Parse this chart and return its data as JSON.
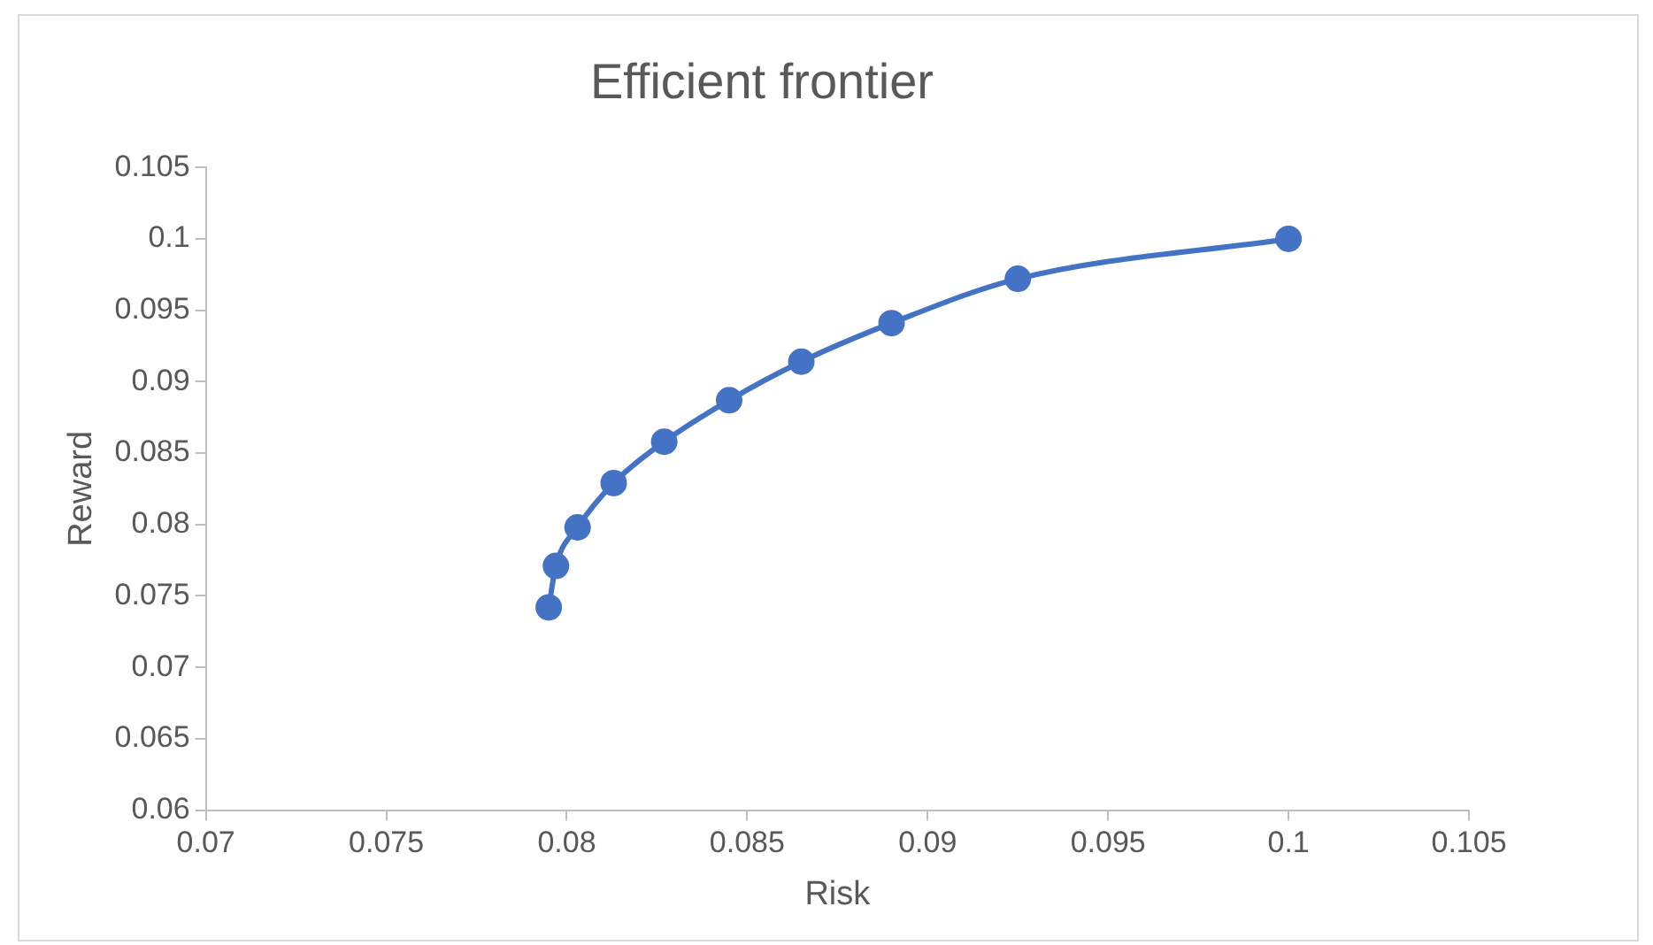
{
  "chart_data": {
    "type": "scatter",
    "title": "Efficient frontier",
    "xlabel": "Risk",
    "ylabel": "Reward",
    "series": [
      {
        "type": "line",
        "color": "#4472c4",
        "x": [
          0.0795,
          0.0797,
          0.0803,
          0.0813,
          0.0827,
          0.0845,
          0.0865,
          0.089,
          0.0925,
          0.1
        ],
        "values": [
          0.0742,
          0.0771,
          0.0798,
          0.0829,
          0.0858,
          0.0887,
          0.0914,
          0.0941,
          0.0972,
          0.1
        ]
      }
    ],
    "marker": "circle",
    "line_style": "solid",
    "grid": false,
    "legend": false,
    "xlim": [
      0.07,
      0.105
    ],
    "xticks": [
      0.07,
      0.075,
      0.08,
      0.085,
      0.09,
      0.095,
      0.1,
      0.105
    ],
    "ylim": [
      0.06,
      0.105
    ],
    "yticks": [
      0.06,
      0.065,
      0.07,
      0.075,
      0.08,
      0.085,
      0.09,
      0.095,
      0.1,
      0.105
    ]
  }
}
